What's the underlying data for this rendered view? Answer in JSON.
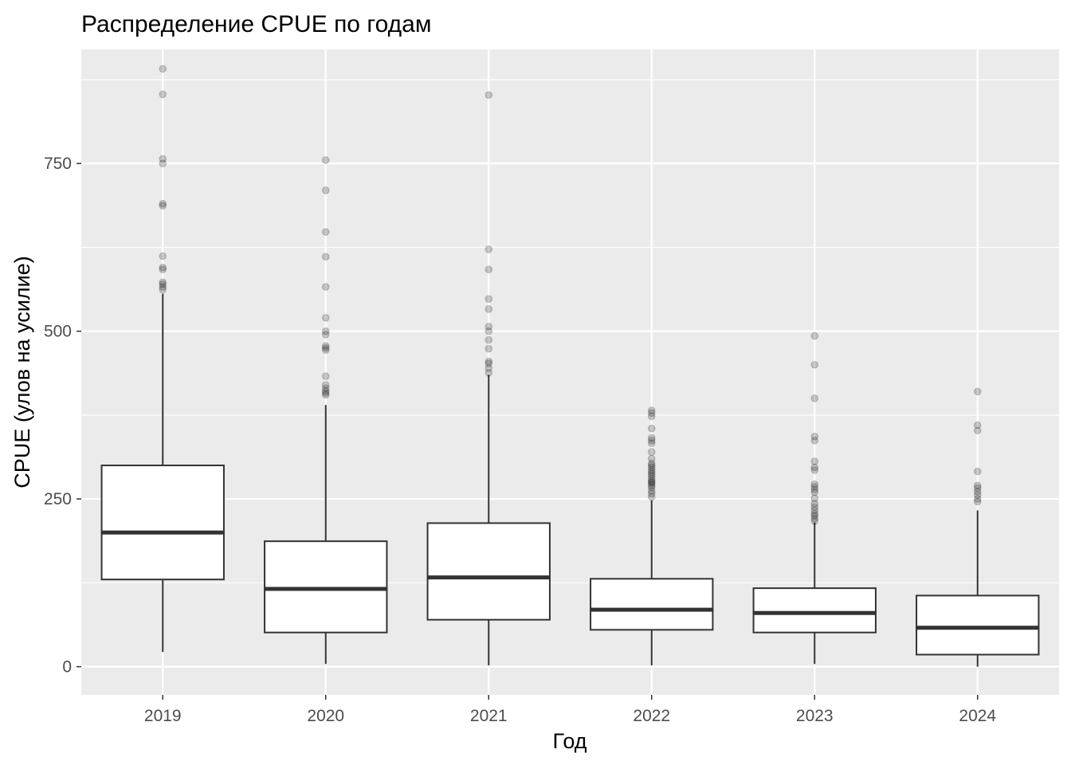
{
  "chart_data": {
    "type": "boxplot",
    "title": "Распределение CPUE по годам",
    "xlabel": "Год",
    "ylabel": "CPUE (улов на усилие)",
    "ylim": [
      -42,
      920
    ],
    "y_ticks": [
      0,
      250,
      500,
      750
    ],
    "categories": [
      "2019",
      "2020",
      "2021",
      "2022",
      "2023",
      "2024"
    ],
    "boxes": [
      {
        "year": "2019",
        "lower_whisker": 22,
        "q1": 130,
        "median": 200,
        "q3": 300,
        "upper_whisker": 556,
        "outliers": [
          891,
          853,
          757,
          750,
          690,
          687,
          612,
          595,
          592,
          573,
          570,
          566,
          562
        ]
      },
      {
        "year": "2020",
        "lower_whisker": 4,
        "q1": 51,
        "median": 116,
        "q3": 187,
        "upper_whisker": 390,
        "outliers": [
          755,
          710,
          648,
          611,
          566,
          520,
          500,
          495,
          478,
          475,
          472,
          433,
          420,
          415,
          411,
          408,
          405
        ]
      },
      {
        "year": "2021",
        "lower_whisker": 2,
        "q1": 70,
        "median": 133,
        "q3": 214,
        "upper_whisker": 435,
        "outliers": [
          852,
          622,
          592,
          548,
          533,
          507,
          500,
          487,
          474,
          455,
          452,
          445,
          438
        ]
      },
      {
        "year": "2022",
        "lower_whisker": 2,
        "q1": 55,
        "median": 85,
        "q3": 131,
        "upper_whisker": 248,
        "outliers": [
          382,
          378,
          373,
          355,
          341,
          337,
          333,
          320,
          310,
          303,
          300,
          297,
          293,
          290,
          287,
          284,
          280,
          277,
          275,
          273,
          270,
          267,
          262,
          258,
          253
        ]
      },
      {
        "year": "2023",
        "lower_whisker": 4,
        "q1": 51,
        "median": 80,
        "q3": 117,
        "upper_whisker": 215,
        "outliers": [
          493,
          450,
          400,
          343,
          337,
          306,
          297,
          293,
          272,
          268,
          264,
          260,
          251,
          243,
          238,
          233,
          228,
          225,
          221,
          217
        ]
      },
      {
        "year": "2024",
        "lower_whisker": 0,
        "q1": 18,
        "median": 58,
        "q3": 106,
        "upper_whisker": 233,
        "outliers": [
          410,
          360,
          352,
          291,
          270,
          266,
          261,
          256,
          250,
          246
        ]
      }
    ],
    "colors": {
      "panel_bg": "#ebebeb",
      "grid_major": "#ffffff",
      "box_fill": "#ffffff",
      "box_line": "#333333",
      "outlier": "#000000"
    },
    "grid": true,
    "legend": "none"
  }
}
